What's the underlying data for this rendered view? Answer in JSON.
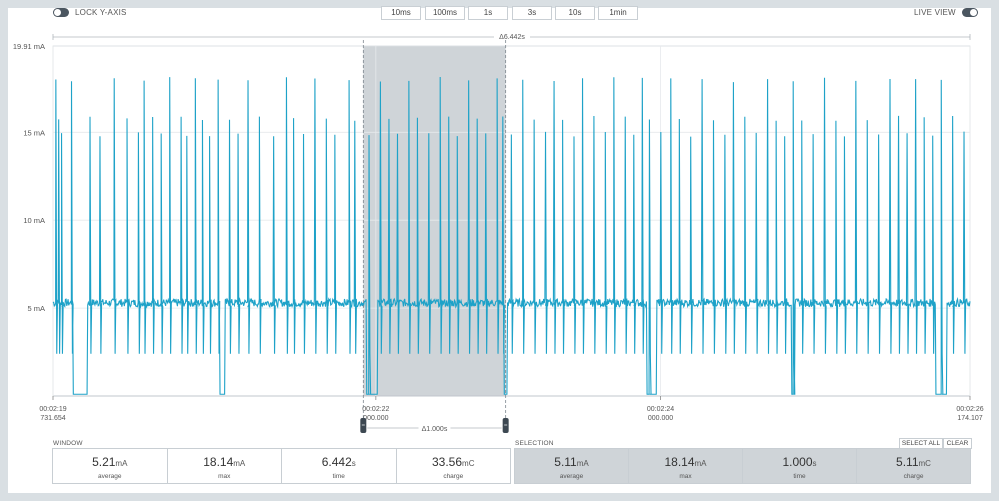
{
  "header": {
    "lock_y_axis": "LOCK Y-AXIS",
    "live_view": "LIVE VIEW",
    "zoom_buttons": [
      "10ms",
      "100ms",
      "1s",
      "3s",
      "10s",
      "1min"
    ],
    "window_delta": "Δ6.442s",
    "selection_delta": "Δ1.000s"
  },
  "chart_data": {
    "type": "line",
    "ylabel_ticks": [
      "19.91 mA",
      "15 mA",
      "10 mA",
      "5 mA"
    ],
    "y_ticks": [
      19.91,
      15,
      10,
      5
    ],
    "ylim": [
      0,
      19.91
    ],
    "y_unit": "mA",
    "x_ticks": [
      {
        "t": 0.0,
        "line1": "00:02:19",
        "line2": "731.654"
      },
      {
        "t": 2.268,
        "line1": "00:02:22",
        "line2": "000.000"
      },
      {
        "t": 4.268,
        "line1": "00:02:24",
        "line2": "000.000"
      },
      {
        "t": 6.442,
        "line1": "00:02:26",
        "line2": "174.107"
      }
    ],
    "xlim": [
      0,
      6.442
    ],
    "x_unit": "s",
    "selection": [
      2.18,
      3.18
    ],
    "baseline_mA": 5.3,
    "spike_peak_mA": 18.14,
    "spike_high_mA": [
      18.0,
      15.8,
      14.9
    ],
    "spike_low_mA": 2.4,
    "dropout_low_mA": 0.1,
    "dropouts": [
      [
        0.14,
        0.24
      ],
      [
        1.17,
        1.21
      ],
      [
        2.2,
        2.28
      ],
      [
        3.17,
        3.19
      ],
      [
        4.17,
        4.24
      ],
      [
        5.19,
        5.21
      ],
      [
        6.2,
        6.28
      ]
    ],
    "spikes": [
      0.02,
      0.04,
      0.06,
      0.13,
      0.26,
      0.33,
      0.43,
      0.52,
      0.6,
      0.64,
      0.7,
      0.76,
      0.82,
      0.9,
      0.94,
      1.0,
      1.05,
      1.1,
      1.16,
      1.24,
      1.3,
      1.37,
      1.45,
      1.55,
      1.64,
      1.69,
      1.76,
      1.84,
      1.92,
      1.98,
      2.08,
      2.12,
      2.22,
      2.3,
      2.36,
      2.42,
      2.5,
      2.56,
      2.64,
      2.72,
      2.78,
      2.84,
      2.92,
      2.98,
      3.04,
      3.12,
      3.16,
      3.22,
      3.3,
      3.38,
      3.46,
      3.52,
      3.58,
      3.66,
      3.72,
      3.8,
      3.88,
      3.94,
      4.02,
      4.08,
      4.14,
      4.19,
      4.27,
      4.34,
      4.4,
      4.48,
      4.56,
      4.64,
      4.72,
      4.78,
      4.86,
      4.94,
      5.02,
      5.08,
      5.14,
      5.2,
      5.26,
      5.34,
      5.42,
      5.5,
      5.56,
      5.64,
      5.72,
      5.8,
      5.88,
      5.94,
      6.0,
      6.06,
      6.12,
      6.18,
      6.24,
      6.32,
      6.4
    ],
    "line_color": "#1ea2c8",
    "selection_color": "#cfd4d8",
    "grid": true
  },
  "window_stats": {
    "label": "WINDOW",
    "items": [
      {
        "value": "5.21",
        "unit": "mA",
        "label": "average"
      },
      {
        "value": "18.14",
        "unit": "mA",
        "label": "max"
      },
      {
        "value": "6.442",
        "unit": "s",
        "label": "time"
      },
      {
        "value": "33.56",
        "unit": "mC",
        "label": "charge"
      }
    ]
  },
  "selection_stats": {
    "label": "SELECTION",
    "select_all": "SELECT ALL",
    "clear": "CLEAR",
    "items": [
      {
        "value": "5.11",
        "unit": "mA",
        "label": "average"
      },
      {
        "value": "18.14",
        "unit": "mA",
        "label": "max"
      },
      {
        "value": "1.000",
        "unit": "s",
        "label": "time"
      },
      {
        "value": "5.11",
        "unit": "mC",
        "label": "charge"
      }
    ]
  }
}
